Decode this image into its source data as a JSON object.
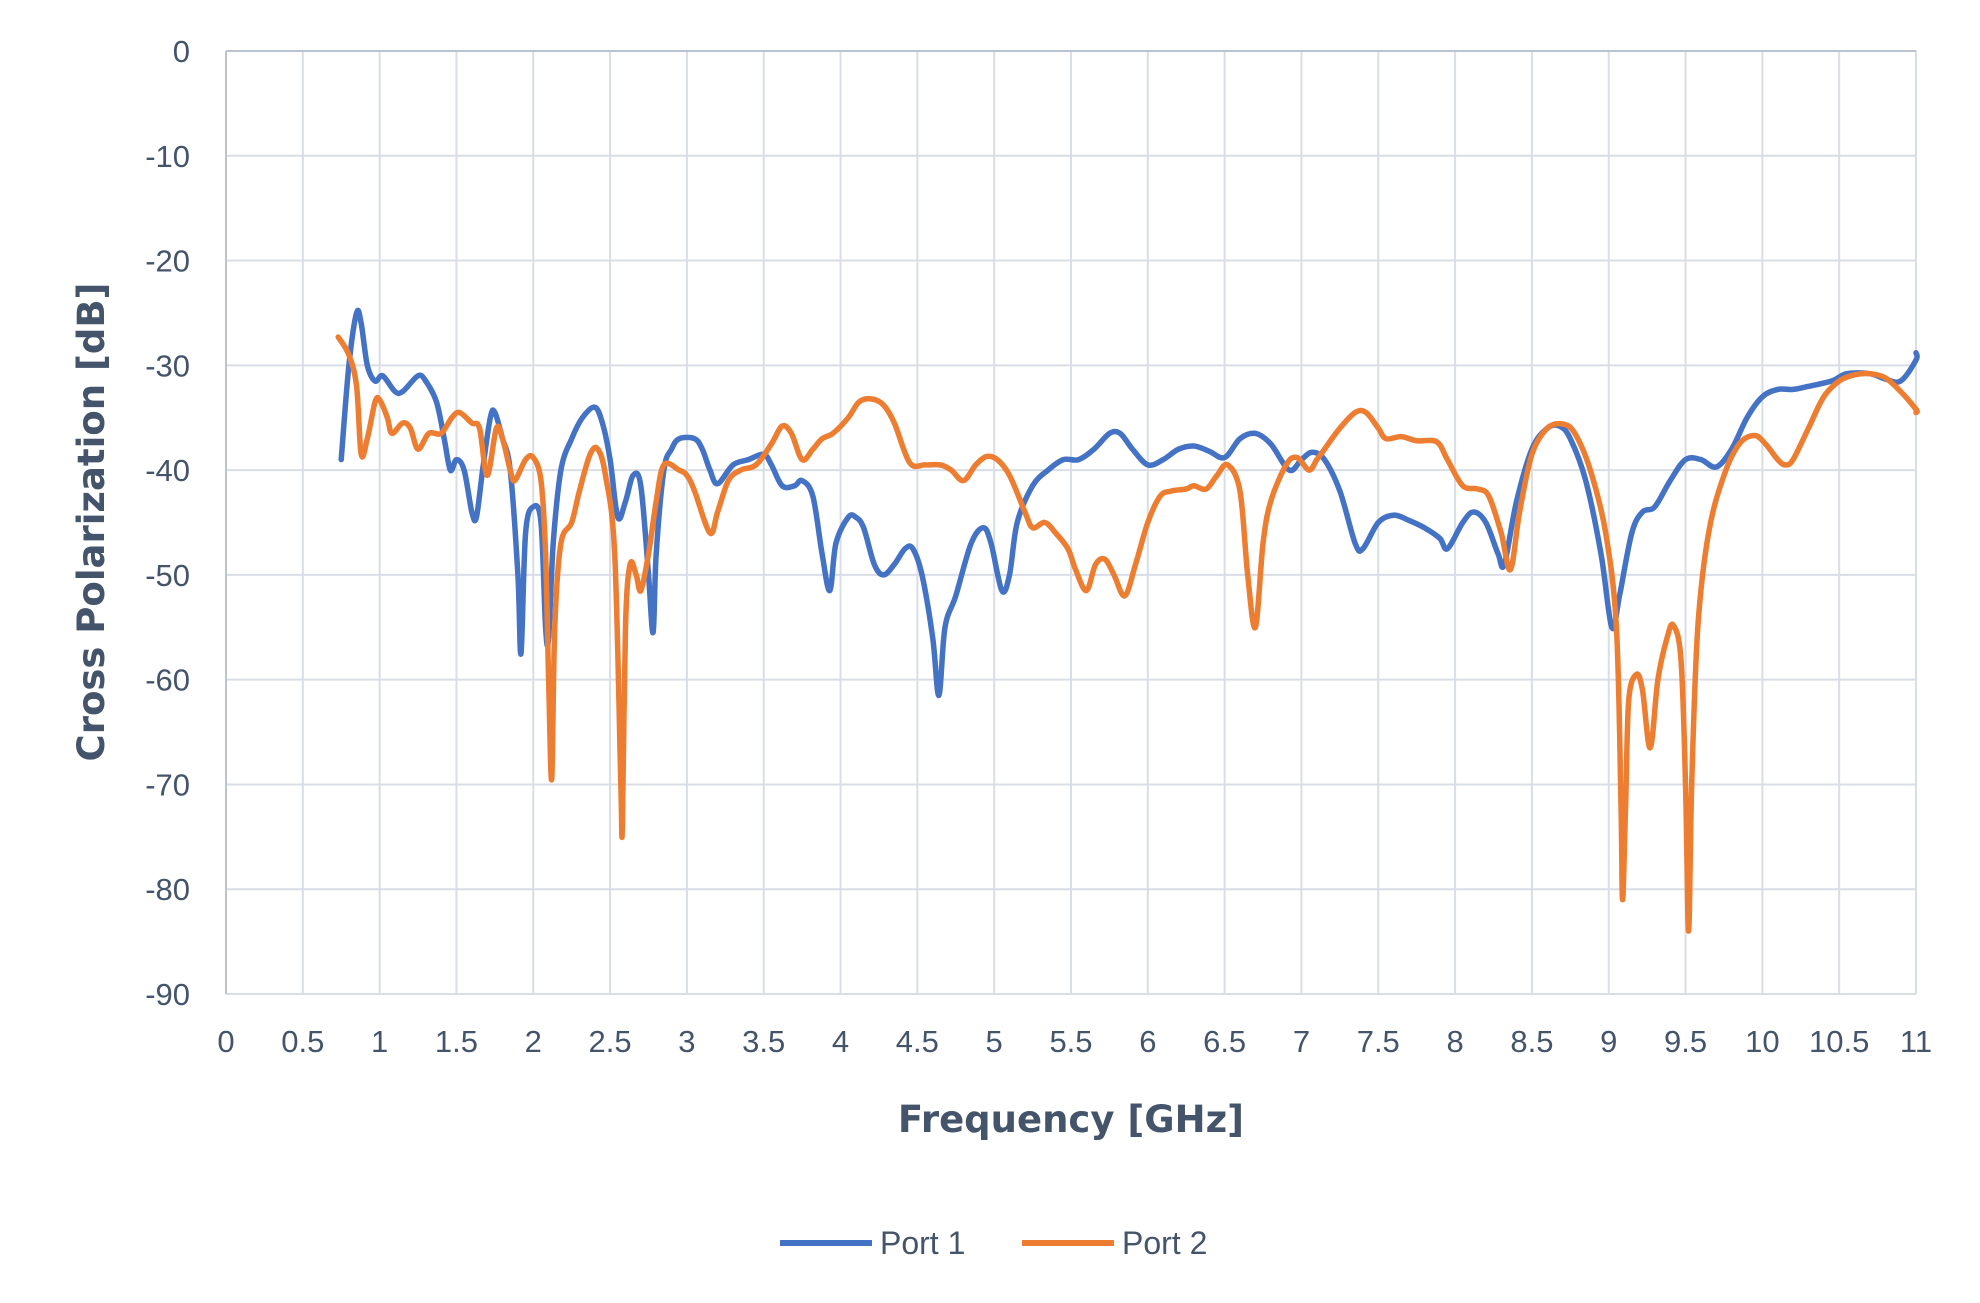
{
  "chart_data": {
    "type": "line",
    "title": "",
    "xlabel": "Frequency [GHz]",
    "ylabel": "Cross Polarization [dB]",
    "xlim": [
      0,
      11
    ],
    "ylim": [
      -90,
      0
    ],
    "x_ticks": [
      "0",
      "0.5",
      "1",
      "1.5",
      "2",
      "2.5",
      "3",
      "3.5",
      "4",
      "4.5",
      "5",
      "5.5",
      "6",
      "6.5",
      "7",
      "7.5",
      "8",
      "8.5",
      "9",
      "9.5",
      "10",
      "10.5",
      "11"
    ],
    "y_ticks": [
      "0",
      "-10",
      "-20",
      "-30",
      "-40",
      "-50",
      "-60",
      "-70",
      "-80",
      "-90"
    ],
    "grid": true,
    "legend_position": "bottom",
    "series": [
      {
        "name": "Port 1",
        "color": "#4472c4",
        "points": [
          [
            0.75,
            -39
          ],
          [
            0.8,
            -30
          ],
          [
            0.85,
            -25
          ],
          [
            0.88,
            -26
          ],
          [
            0.92,
            -30
          ],
          [
            0.97,
            -31.5
          ],
          [
            1.02,
            -31
          ],
          [
            1.1,
            -32.5
          ],
          [
            1.15,
            -32.5
          ],
          [
            1.25,
            -31
          ],
          [
            1.3,
            -31.5
          ],
          [
            1.37,
            -33.5
          ],
          [
            1.42,
            -37
          ],
          [
            1.46,
            -40
          ],
          [
            1.5,
            -39
          ],
          [
            1.55,
            -40
          ],
          [
            1.6,
            -44
          ],
          [
            1.63,
            -44.5
          ],
          [
            1.67,
            -40
          ],
          [
            1.72,
            -35
          ],
          [
            1.75,
            -34.5
          ],
          [
            1.8,
            -37
          ],
          [
            1.85,
            -40
          ],
          [
            1.9,
            -50
          ],
          [
            1.92,
            -57.5
          ],
          [
            1.95,
            -46
          ],
          [
            2.0,
            -43.5
          ],
          [
            2.05,
            -45
          ],
          [
            2.08,
            -55
          ],
          [
            2.1,
            -56
          ],
          [
            2.13,
            -47
          ],
          [
            2.18,
            -40
          ],
          [
            2.25,
            -37
          ],
          [
            2.32,
            -35
          ],
          [
            2.4,
            -34
          ],
          [
            2.45,
            -35.5
          ],
          [
            2.5,
            -39
          ],
          [
            2.55,
            -44.5
          ],
          [
            2.6,
            -43
          ],
          [
            2.65,
            -40.5
          ],
          [
            2.7,
            -41.5
          ],
          [
            2.75,
            -50
          ],
          [
            2.78,
            -55.5
          ],
          [
            2.8,
            -48
          ],
          [
            2.85,
            -40
          ],
          [
            2.9,
            -38
          ],
          [
            2.95,
            -37
          ],
          [
            3.05,
            -37
          ],
          [
            3.1,
            -38
          ],
          [
            3.15,
            -40
          ],
          [
            3.2,
            -41.3
          ],
          [
            3.3,
            -39.5
          ],
          [
            3.4,
            -39
          ],
          [
            3.5,
            -38.5
          ],
          [
            3.55,
            -39.5
          ],
          [
            3.62,
            -41.5
          ],
          [
            3.7,
            -41.5
          ],
          [
            3.75,
            -41
          ],
          [
            3.82,
            -42.5
          ],
          [
            3.88,
            -48
          ],
          [
            3.93,
            -51.5
          ],
          [
            3.97,
            -47
          ],
          [
            4.05,
            -44.5
          ],
          [
            4.1,
            -44.5
          ],
          [
            4.15,
            -45.5
          ],
          [
            4.22,
            -49
          ],
          [
            4.28,
            -50
          ],
          [
            4.35,
            -49
          ],
          [
            4.42,
            -47.5
          ],
          [
            4.47,
            -47.5
          ],
          [
            4.53,
            -50
          ],
          [
            4.6,
            -56
          ],
          [
            4.64,
            -61.5
          ],
          [
            4.68,
            -55
          ],
          [
            4.75,
            -52
          ],
          [
            4.85,
            -47
          ],
          [
            4.93,
            -45.5
          ],
          [
            4.98,
            -47
          ],
          [
            5.05,
            -51.5
          ],
          [
            5.1,
            -50
          ],
          [
            5.15,
            -45
          ],
          [
            5.25,
            -41.5
          ],
          [
            5.35,
            -40
          ],
          [
            5.45,
            -39
          ],
          [
            5.55,
            -39
          ],
          [
            5.65,
            -38
          ],
          [
            5.75,
            -36.5
          ],
          [
            5.82,
            -36.5
          ],
          [
            5.9,
            -38
          ],
          [
            6.0,
            -39.5
          ],
          [
            6.1,
            -39
          ],
          [
            6.2,
            -38
          ],
          [
            6.3,
            -37.7
          ],
          [
            6.4,
            -38.2
          ],
          [
            6.5,
            -38.8
          ],
          [
            6.6,
            -37
          ],
          [
            6.7,
            -36.5
          ],
          [
            6.8,
            -37.5
          ],
          [
            6.92,
            -40
          ],
          [
            7.0,
            -39
          ],
          [
            7.07,
            -38.3
          ],
          [
            7.15,
            -39
          ],
          [
            7.25,
            -42
          ],
          [
            7.35,
            -47
          ],
          [
            7.4,
            -47.5
          ],
          [
            7.5,
            -45
          ],
          [
            7.6,
            -44.3
          ],
          [
            7.7,
            -44.8
          ],
          [
            7.8,
            -45.5
          ],
          [
            7.9,
            -46.5
          ],
          [
            7.95,
            -47.5
          ],
          [
            8.05,
            -45
          ],
          [
            8.12,
            -44
          ],
          [
            8.2,
            -45
          ],
          [
            8.28,
            -48
          ],
          [
            8.32,
            -49
          ],
          [
            8.4,
            -43
          ],
          [
            8.5,
            -38
          ],
          [
            8.6,
            -36
          ],
          [
            8.68,
            -35.8
          ],
          [
            8.75,
            -37
          ],
          [
            8.85,
            -41
          ],
          [
            8.95,
            -48
          ],
          [
            9.02,
            -55
          ],
          [
            9.07,
            -52
          ],
          [
            9.15,
            -46
          ],
          [
            9.22,
            -44
          ],
          [
            9.3,
            -43.5
          ],
          [
            9.4,
            -41
          ],
          [
            9.5,
            -39
          ],
          [
            9.6,
            -39
          ],
          [
            9.7,
            -39.7
          ],
          [
            9.8,
            -38
          ],
          [
            9.9,
            -35
          ],
          [
            10.0,
            -33
          ],
          [
            10.1,
            -32.3
          ],
          [
            10.2,
            -32.3
          ],
          [
            10.3,
            -32
          ],
          [
            10.45,
            -31.5
          ],
          [
            10.55,
            -30.8
          ],
          [
            10.7,
            -30.8
          ],
          [
            10.8,
            -31.3
          ],
          [
            10.9,
            -31.5
          ],
          [
            11.0,
            -29.5
          ],
          [
            11.05,
            -28.8
          ]
        ]
      },
      {
        "name": "Port 2",
        "color": "#ed7d31",
        "points": [
          [
            0.73,
            -27.3
          ],
          [
            0.8,
            -29
          ],
          [
            0.85,
            -32
          ],
          [
            0.88,
            -38.5
          ],
          [
            0.92,
            -37
          ],
          [
            0.97,
            -33.5
          ],
          [
            1.0,
            -33.3
          ],
          [
            1.05,
            -35
          ],
          [
            1.08,
            -36.5
          ],
          [
            1.15,
            -35.5
          ],
          [
            1.2,
            -36
          ],
          [
            1.25,
            -38
          ],
          [
            1.32,
            -36.5
          ],
          [
            1.4,
            -36.5
          ],
          [
            1.47,
            -35
          ],
          [
            1.52,
            -34.5
          ],
          [
            1.6,
            -35.5
          ],
          [
            1.65,
            -36
          ],
          [
            1.7,
            -40.5
          ],
          [
            1.76,
            -36
          ],
          [
            1.8,
            -37
          ],
          [
            1.85,
            -40
          ],
          [
            1.88,
            -41
          ],
          [
            1.95,
            -39
          ],
          [
            2.0,
            -38.8
          ],
          [
            2.05,
            -41
          ],
          [
            2.08,
            -48
          ],
          [
            2.1,
            -60
          ],
          [
            2.12,
            -69.5
          ],
          [
            2.14,
            -55
          ],
          [
            2.18,
            -47
          ],
          [
            2.25,
            -45
          ],
          [
            2.3,
            -42
          ],
          [
            2.37,
            -38.5
          ],
          [
            2.42,
            -38
          ],
          [
            2.47,
            -40.5
          ],
          [
            2.53,
            -48
          ],
          [
            2.57,
            -70
          ],
          [
            2.58,
            -74
          ],
          [
            2.6,
            -55
          ],
          [
            2.63,
            -49
          ],
          [
            2.67,
            -50
          ],
          [
            2.7,
            -51.5
          ],
          [
            2.75,
            -48
          ],
          [
            2.8,
            -43
          ],
          [
            2.85,
            -39.5
          ],
          [
            2.95,
            -40
          ],
          [
            3.0,
            -40.5
          ],
          [
            3.05,
            -42
          ],
          [
            3.15,
            -46
          ],
          [
            3.2,
            -44
          ],
          [
            3.27,
            -41
          ],
          [
            3.35,
            -40
          ],
          [
            3.45,
            -39.5
          ],
          [
            3.55,
            -37.5
          ],
          [
            3.62,
            -35.8
          ],
          [
            3.68,
            -36.5
          ],
          [
            3.75,
            -39
          ],
          [
            3.82,
            -38
          ],
          [
            3.88,
            -37
          ],
          [
            3.95,
            -36.5
          ],
          [
            4.05,
            -35
          ],
          [
            4.12,
            -33.5
          ],
          [
            4.2,
            -33.2
          ],
          [
            4.28,
            -33.8
          ],
          [
            4.35,
            -35.5
          ],
          [
            4.45,
            -39.3
          ],
          [
            4.55,
            -39.5
          ],
          [
            4.65,
            -39.5
          ],
          [
            4.72,
            -40
          ],
          [
            4.8,
            -41
          ],
          [
            4.88,
            -39.5
          ],
          [
            4.95,
            -38.7
          ],
          [
            5.02,
            -39
          ],
          [
            5.1,
            -40.5
          ],
          [
            5.2,
            -44
          ],
          [
            5.25,
            -45.5
          ],
          [
            5.33,
            -45
          ],
          [
            5.4,
            -46
          ],
          [
            5.48,
            -47.5
          ],
          [
            5.53,
            -49.5
          ],
          [
            5.6,
            -51.5
          ],
          [
            5.66,
            -49
          ],
          [
            5.72,
            -48.5
          ],
          [
            5.78,
            -50
          ],
          [
            5.85,
            -52
          ],
          [
            5.92,
            -49
          ],
          [
            6.0,
            -45
          ],
          [
            6.08,
            -42.5
          ],
          [
            6.15,
            -42
          ],
          [
            6.25,
            -41.8
          ],
          [
            6.3,
            -41.5
          ],
          [
            6.38,
            -41.8
          ],
          [
            6.45,
            -40.5
          ],
          [
            6.52,
            -39.5
          ],
          [
            6.6,
            -42
          ],
          [
            6.65,
            -50
          ],
          [
            6.7,
            -55
          ],
          [
            6.75,
            -47
          ],
          [
            6.8,
            -43
          ],
          [
            6.9,
            -39.5
          ],
          [
            6.97,
            -38.8
          ],
          [
            7.05,
            -40
          ],
          [
            7.1,
            -39
          ],
          [
            7.15,
            -38
          ],
          [
            7.25,
            -36
          ],
          [
            7.35,
            -34.5
          ],
          [
            7.42,
            -34.5
          ],
          [
            7.5,
            -36
          ],
          [
            7.55,
            -37
          ],
          [
            7.65,
            -36.8
          ],
          [
            7.75,
            -37.2
          ],
          [
            7.88,
            -37.3
          ],
          [
            7.95,
            -39
          ],
          [
            8.05,
            -41.5
          ],
          [
            8.15,
            -41.8
          ],
          [
            8.22,
            -42.5
          ],
          [
            8.3,
            -46
          ],
          [
            8.36,
            -49.5
          ],
          [
            8.42,
            -44
          ],
          [
            8.5,
            -38.5
          ],
          [
            8.6,
            -36
          ],
          [
            8.7,
            -35.6
          ],
          [
            8.78,
            -36.5
          ],
          [
            8.88,
            -40
          ],
          [
            8.98,
            -46
          ],
          [
            9.05,
            -55
          ],
          [
            9.08,
            -72
          ],
          [
            9.09,
            -81
          ],
          [
            9.11,
            -72
          ],
          [
            9.13,
            -62
          ],
          [
            9.18,
            -59.5
          ],
          [
            9.22,
            -61
          ],
          [
            9.27,
            -66.5
          ],
          [
            9.32,
            -60
          ],
          [
            9.38,
            -56
          ],
          [
            9.42,
            -54.8
          ],
          [
            9.47,
            -58
          ],
          [
            9.5,
            -70
          ],
          [
            9.52,
            -84
          ],
          [
            9.54,
            -70
          ],
          [
            9.58,
            -55
          ],
          [
            9.65,
            -46
          ],
          [
            9.75,
            -40.5
          ],
          [
            9.85,
            -37.5
          ],
          [
            9.95,
            -36.7
          ],
          [
            10.02,
            -37.5
          ],
          [
            10.1,
            -39
          ],
          [
            10.15,
            -39.5
          ],
          [
            10.2,
            -39
          ],
          [
            10.3,
            -36
          ],
          [
            10.4,
            -33
          ],
          [
            10.5,
            -31.5
          ],
          [
            10.6,
            -30.9
          ],
          [
            10.7,
            -30.8
          ],
          [
            10.8,
            -31.2
          ],
          [
            10.9,
            -32.5
          ],
          [
            11.0,
            -34.2
          ],
          [
            11.05,
            -34.5
          ]
        ]
      }
    ]
  }
}
